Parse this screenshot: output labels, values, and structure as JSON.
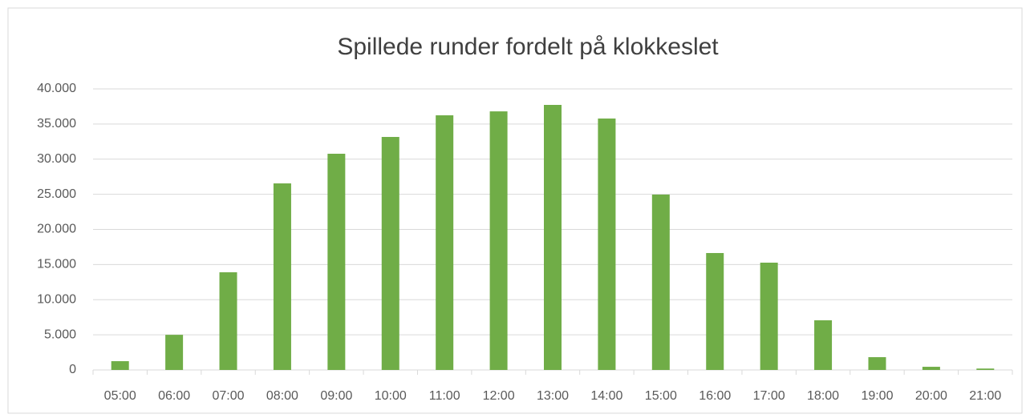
{
  "chart_data": {
    "type": "bar",
    "title": "Spillede runder fordelt på klokkeslet",
    "categories": [
      "05:00",
      "06:00",
      "07:00",
      "08:00",
      "09:00",
      "10:00",
      "11:00",
      "12:00",
      "13:00",
      "14:00",
      "15:00",
      "16:00",
      "17:00",
      "18:00",
      "19:00",
      "20:00",
      "21:00"
    ],
    "values": [
      1250,
      5000,
      13900,
      26550,
      30770,
      33160,
      36240,
      36800,
      37720,
      35780,
      24960,
      16640,
      15270,
      7070,
      1820,
      450,
      200
    ],
    "color": "#70ad47",
    "ylim": [
      0,
      40000
    ],
    "yticks": [
      0,
      {
        "value": 5000,
        "label": "5.000"
      },
      {
        "value": 10000,
        "label": "10.000"
      },
      {
        "value": 15000,
        "label": "15.000"
      },
      {
        "value": 20000,
        "label": "20.000"
      },
      {
        "value": 25000,
        "label": "25.000"
      },
      {
        "value": 30000,
        "label": "30.000"
      },
      {
        "value": 35000,
        "label": "35.000"
      },
      {
        "value": 40000,
        "label": "40.000"
      }
    ],
    "grid": true
  }
}
